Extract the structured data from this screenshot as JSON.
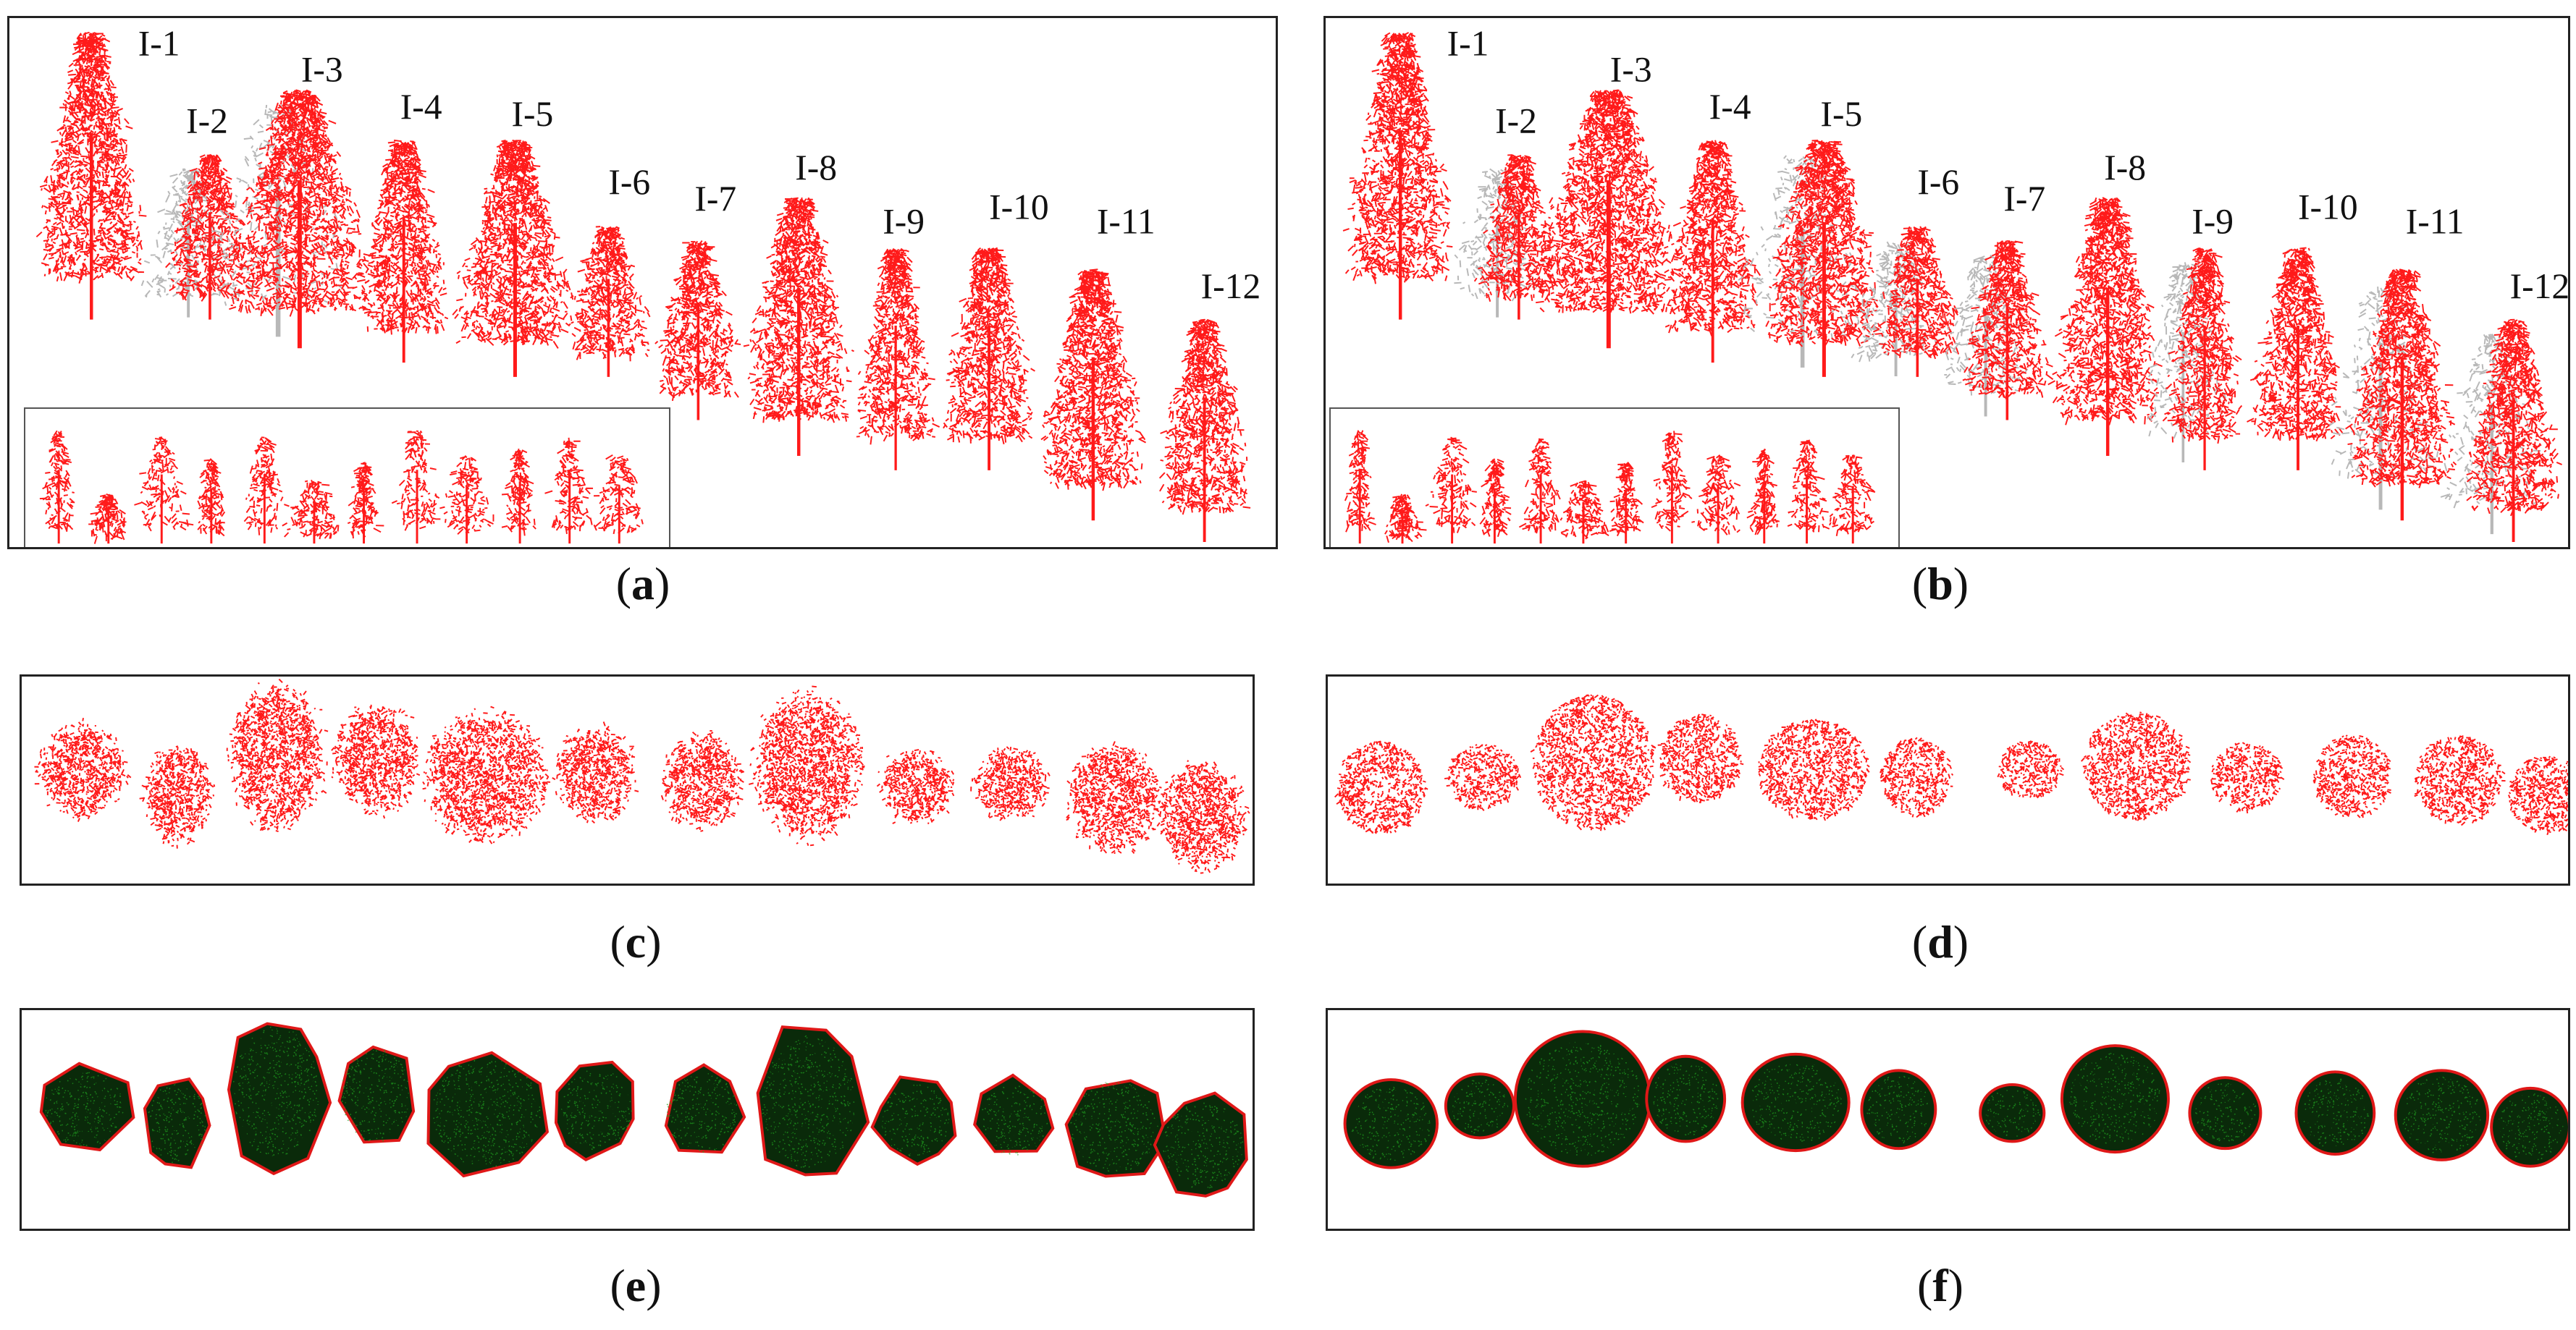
{
  "panels": {
    "a": {
      "caption": "a",
      "tree_labels": [
        "I-1",
        "I-2",
        "I-3",
        "I-4",
        "I-5",
        "I-6",
        "I-7",
        "I-8",
        "I-9",
        "I-10",
        "I-11",
        "I-12"
      ]
    },
    "b": {
      "caption": "b",
      "tree_labels": [
        "I-1",
        "I-2",
        "I-3",
        "I-4",
        "I-5",
        "I-6",
        "I-7",
        "I-8",
        "I-9",
        "I-10",
        "I-11",
        "I-12"
      ]
    },
    "c": {
      "caption": "c"
    },
    "d": {
      "caption": "d"
    },
    "e": {
      "caption": "e"
    },
    "f": {
      "caption": "f"
    }
  },
  "colors": {
    "tree_points": "#ff1a1a",
    "unassigned_points": "#b8b8b8",
    "crown_fill": "#0a2a0a",
    "crown_speckle": "#1fa01f",
    "hull_outline": "#e01818",
    "frame": "#222222"
  }
}
